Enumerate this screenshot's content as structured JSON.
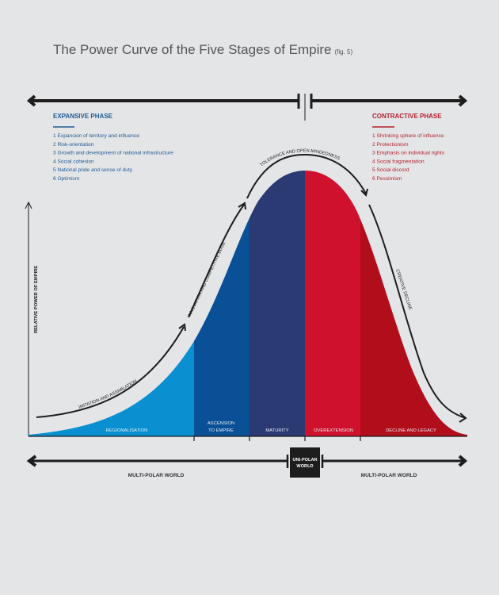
{
  "title": "The Power Curve of the Five Stages of Empire",
  "fig_note": "(fig. 5)",
  "expansive": {
    "heading": "EXPANSIVE PHASE",
    "items": [
      "1  Expansion of territory and influence",
      "2  Risk-orientation",
      "3  Growth and development of national infrastructure",
      "4  Social cohesion",
      "5  National pride and sense of duty",
      "6  Optimism"
    ]
  },
  "contractive": {
    "heading": "CONTRACTIVE PHASE",
    "items": [
      "1  Shrinking sphere of influence",
      "2  Protectionism",
      "3  Emphasis on individual rights",
      "4  Social fragmentation",
      "5  Social discord",
      "6  Pessimism"
    ]
  },
  "y_axis_label": "RELATIVE POWER OF EMPIRE",
  "curve_labels": {
    "imitation": "IMITATION AND ASSIMILATION",
    "innovation": "INNOVATION AND COMPETITIVE EDGE",
    "tolerance": "TOLERANCE AND OPEN-MINDEDNESS",
    "decline": "CREATIVE DECLINE"
  },
  "stages": [
    {
      "label": "REGIONALISATION",
      "color": "#0a8fd0"
    },
    {
      "label": "ASCENSION",
      "label2": "TO EMPIRE",
      "color": "#0a5097"
    },
    {
      "label": "MATURITY",
      "color": "#2b3a72"
    },
    {
      "label": "OVEREXTENSION",
      "color": "#d0112d"
    },
    {
      "label": "DECLINE AND LEGACY",
      "color": "#b20d1b"
    }
  ],
  "bottom": {
    "left": "MULTI-POLAR WORLD",
    "center1": "UNI-POLAR",
    "center2": "WORLD",
    "right": "MULTI-POLAR WORLD"
  },
  "colors": {
    "blue": "#1f5b93",
    "red": "#b3212b",
    "ink": "#1d1d1d"
  }
}
